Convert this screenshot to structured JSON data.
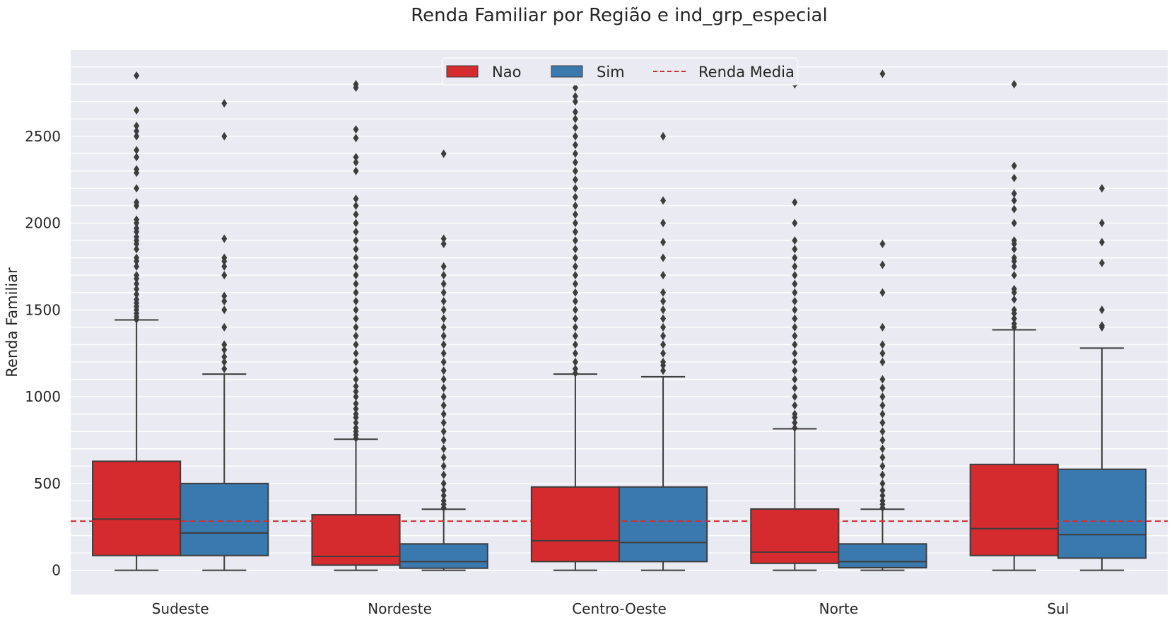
{
  "chart_data": {
    "type": "box",
    "title": "Renda Familiar por Região e ind_grp_especial",
    "xlabel": "",
    "ylabel": "Renda Familiar",
    "ylim": [
      -140,
      3000
    ],
    "yticks": [
      0,
      500,
      1000,
      1500,
      2000,
      2500
    ],
    "minor_grid_step": 100,
    "grid": true,
    "legend_position": "top-center",
    "categories": [
      "Sudeste",
      "Nordeste",
      "Centro-Oeste",
      "Norte",
      "Sul"
    ],
    "series": [
      {
        "name": "Nao",
        "color": "#d52a2e",
        "boxes": [
          {
            "min": 0,
            "q1": 85,
            "median": 295,
            "q3": 628,
            "max": 1442,
            "outliers": [
              1445,
              1460,
              1480,
              1500,
              1520,
              1540,
              1560,
              1590,
              1620,
              1650,
              1680,
              1700,
              1750,
              1780,
              1800,
              1850,
              1880,
              1900,
              1920,
              1950,
              1970,
              2000,
              2020,
              2100,
              2120,
              2200,
              2290,
              2310,
              2380,
              2420,
              2500,
              2530,
              2560,
              2650,
              2850
            ]
          },
          {
            "min": 0,
            "q1": 30,
            "median": 80,
            "q3": 320,
            "max": 755,
            "outliers": [
              760,
              780,
              800,
              820,
              850,
              880,
              900,
              930,
              960,
              1000,
              1030,
              1060,
              1100,
              1150,
              1200,
              1250,
              1300,
              1350,
              1400,
              1450,
              1500,
              1550,
              1600,
              1650,
              1700,
              1750,
              1800,
              1850,
              1900,
              1950,
              2000,
              2050,
              2100,
              2140,
              2300,
              2350,
              2380,
              2490,
              2540,
              2780,
              2800
            ]
          },
          {
            "min": 0,
            "q1": 50,
            "median": 170,
            "q3": 480,
            "max": 1130,
            "outliers": [
              1135,
              1160,
              1200,
              1250,
              1300,
              1350,
              1400,
              1450,
              1500,
              1550,
              1600,
              1650,
              1700,
              1750,
              1800,
              1850,
              1900,
              1950,
              2000,
              2050,
              2100,
              2150,
              2200,
              2250,
              2300,
              2350,
              2400,
              2450,
              2500,
              2550,
              2600,
              2640,
              2700,
              2730,
              2780,
              2820,
              2850
            ]
          },
          {
            "min": 0,
            "q1": 40,
            "median": 105,
            "q3": 353,
            "max": 815,
            "outliers": [
              820,
              850,
              880,
              900,
              950,
              1000,
              1050,
              1100,
              1150,
              1200,
              1250,
              1300,
              1350,
              1400,
              1450,
              1500,
              1550,
              1600,
              1650,
              1700,
              1750,
              1800,
              1850,
              1900,
              2000,
              2120,
              2800,
              2850
            ]
          },
          {
            "min": 0,
            "q1": 85,
            "median": 240,
            "q3": 610,
            "max": 1385,
            "outliers": [
              1400,
              1420,
              1450,
              1480,
              1500,
              1560,
              1600,
              1620,
              1700,
              1750,
              1780,
              1800,
              1850,
              1880,
              1900,
              2000,
              2080,
              2130,
              2170,
              2260,
              2330,
              2800
            ]
          }
        ]
      },
      {
        "name": "Sim",
        "color": "#3a79ad",
        "boxes": [
          {
            "min": 0,
            "q1": 85,
            "median": 215,
            "q3": 500,
            "max": 1130,
            "outliers": [
              1160,
              1200,
              1230,
              1270,
              1300,
              1400,
              1500,
              1550,
              1580,
              1700,
              1750,
              1780,
              1800,
              1910,
              2500,
              2690
            ]
          },
          {
            "min": 0,
            "q1": 12,
            "median": 50,
            "q3": 152,
            "max": 352,
            "outliers": [
              360,
              380,
              400,
              430,
              460,
              500,
              550,
              600,
              650,
              700,
              750,
              800,
              850,
              900,
              950,
              1000,
              1050,
              1100,
              1150,
              1200,
              1250,
              1300,
              1350,
              1400,
              1450,
              1500,
              1550,
              1600,
              1650,
              1700,
              1750,
              1880,
              1910,
              2400
            ]
          },
          {
            "min": 0,
            "q1": 50,
            "median": 160,
            "q3": 480,
            "max": 1115,
            "outliers": [
              1150,
              1180,
              1200,
              1250,
              1300,
              1350,
              1400,
              1450,
              1500,
              1550,
              1600,
              1700,
              1800,
              1890,
              2000,
              2130,
              2500
            ]
          },
          {
            "min": 0,
            "q1": 15,
            "median": 50,
            "q3": 152,
            "max": 352,
            "outliers": [
              360,
              380,
              400,
              430,
              460,
              500,
              550,
              600,
              650,
              700,
              750,
              800,
              850,
              900,
              950,
              1000,
              1050,
              1100,
              1200,
              1250,
              1300,
              1400,
              1600,
              1760,
              1880,
              2860
            ]
          },
          {
            "min": 0,
            "q1": 70,
            "median": 205,
            "q3": 582,
            "max": 1280,
            "outliers": [
              1400,
              1410,
              1500,
              1770,
              1890,
              2000,
              2200
            ]
          }
        ]
      }
    ],
    "reference_line": {
      "name": "Renda Media",
      "value": 283,
      "color": "#d52a2e",
      "style": "dashed"
    }
  }
}
